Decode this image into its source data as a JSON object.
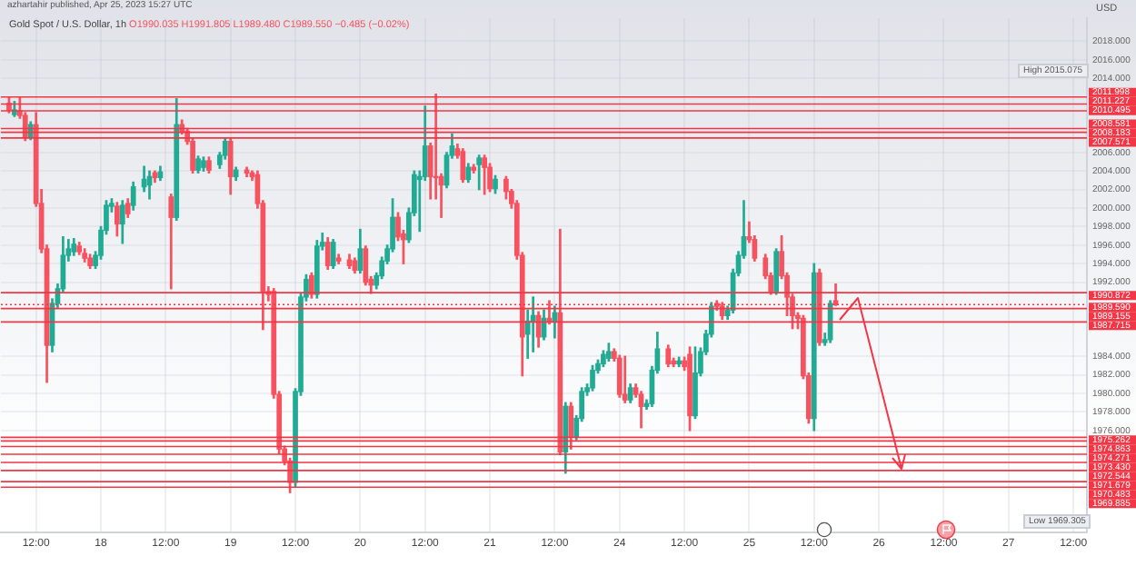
{
  "chart_data": {
    "type": "candlestick",
    "title": "Gold Spot / U.S. Dollar, 1h",
    "subtitle": "O1990.035 H1991.805 L1989.480 C1989.550 −0.485 (−0.02%)",
    "ylabel": "USD",
    "annotations": [
      "azhartahir published, Apr 25, 2023 15:27 UTC",
      "High 2015.075",
      "Low 1969.305"
    ],
    "categories": [
      null,
      null,
      null,
      null,
      null,
      null,
      "12:00",
      null,
      null,
      null,
      null,
      null,
      null,
      null,
      null,
      null,
      null,
      null,
      "18",
      null,
      null,
      null,
      null,
      null,
      null,
      null,
      null,
      null,
      null,
      null,
      "12:00",
      null,
      null,
      null,
      null,
      null,
      null,
      null,
      null,
      null,
      null,
      null,
      "19",
      null,
      null,
      null,
      null,
      null,
      null,
      null,
      null,
      null,
      null,
      null,
      "12:00",
      null,
      null,
      null,
      null,
      null,
      null,
      null,
      null,
      null,
      null,
      null,
      "20",
      null,
      null,
      null,
      null,
      null,
      null,
      null,
      null,
      null,
      null,
      null,
      "12:00",
      null,
      null,
      null,
      null,
      null,
      null,
      null,
      null,
      null,
      null,
      null,
      "21",
      null,
      null,
      null,
      null,
      null,
      null,
      null,
      null,
      null,
      null,
      null,
      "12:00",
      null,
      null,
      null,
      null,
      null,
      null,
      null,
      null,
      null,
      null,
      null,
      "24",
      null,
      null,
      null,
      null,
      null,
      null,
      null,
      null,
      null,
      null,
      null,
      "12:00",
      null,
      null,
      null,
      null,
      null,
      null,
      null,
      null,
      null,
      null,
      null,
      "25",
      null,
      null,
      null,
      null,
      null,
      null,
      null,
      null,
      null,
      null,
      null,
      "12:00",
      null,
      null,
      null,
      null,
      null,
      null,
      null,
      null,
      null,
      null,
      null,
      "26",
      null,
      null,
      null,
      null,
      null,
      null,
      null,
      null,
      null,
      null,
      null,
      "12:00",
      null,
      null,
      null,
      null,
      null,
      null,
      null,
      null,
      null,
      null,
      null,
      "27",
      null,
      null,
      null,
      null,
      null,
      null,
      null,
      null,
      null,
      null,
      null,
      "12:00",
      null,
      null
    ],
    "ohlc": [
      null,
      [
        2011.3,
        2012.0,
        2010.3,
        2010.6
      ],
      [
        2010.1,
        2011.5,
        2009.9,
        2010.6
      ],
      [
        2010.5,
        2012.0,
        2009.7,
        2010.0
      ],
      [
        2010.0,
        2010.3,
        2007.3,
        2007.7
      ],
      [
        2007.7,
        2009.3,
        2007.4,
        2009.0
      ],
      [
        2009.0,
        2010.3,
        2000.2,
        2000.5
      ],
      [
        2000.5,
        2002.0,
        1995.2,
        1995.6
      ],
      [
        1995.6,
        1996.0,
        1981.2,
        1985.2
      ],
      [
        1985.2,
        1990.2,
        1984.5,
        1989.7
      ],
      [
        1989.7,
        1991.8,
        1989.2,
        1991.3
      ],
      [
        1991.3,
        1996.9,
        1991.0,
        1994.9
      ],
      [
        1994.9,
        1996.6,
        1994.3,
        1995.6
      ],
      [
        1995.3,
        1996.7,
        1994.9,
        1996.1
      ],
      [
        1995.9,
        1996.3,
        1995.0,
        1995.3
      ],
      [
        1995.1,
        1995.6,
        1994.2,
        1994.6
      ],
      [
        1994.6,
        1995.0,
        1993.5,
        1993.8
      ],
      [
        1993.8,
        1995.3,
        1993.5,
        1994.9
      ],
      [
        1994.9,
        1998.0,
        1994.5,
        1997.6
      ],
      [
        1997.6,
        2000.8,
        1997.2,
        2000.3
      ],
      [
        2000.2,
        2001.0,
        1999.6,
        2000.5
      ],
      [
        2000.2,
        2000.6,
        1997.0,
        1998.3
      ],
      [
        1998.3,
        2000.8,
        1996.2,
        2000.3
      ],
      [
        2000.5,
        2001.0,
        1999.0,
        1999.4
      ],
      [
        2000.3,
        2002.8,
        1999.8,
        2002.3
      ],
      null,
      [
        2002.3,
        2004.5,
        2001.8,
        2003.1
      ],
      [
        2002.5,
        2004.0,
        2001.0,
        2003.4
      ],
      [
        2003.8,
        2004.0,
        2002.8,
        2003.3
      ],
      [
        2003.3,
        2004.5,
        2003.0,
        2003.9
      ],
      null,
      [
        2001.2,
        2001.5,
        1991.3,
        1999.0
      ],
      [
        1999.0,
        2011.8,
        1998.7,
        2009.0
      ],
      [
        2009.0,
        2009.5,
        2008.0,
        2008.3
      ],
      [
        2008.3,
        2008.6,
        2006.9,
        2007.2
      ],
      [
        2007.2,
        2007.5,
        2003.8,
        2004.1
      ],
      [
        2004.1,
        2005.6,
        2003.8,
        2005.3
      ],
      [
        2004.4,
        2005.5,
        2004.0,
        2005.1
      ],
      [
        2005.1,
        2005.5,
        2003.8,
        2004.1
      ],
      null,
      [
        2004.7,
        2006.0,
        2004.3,
        2005.7
      ],
      [
        2005.7,
        2007.5,
        2005.3,
        2007.2
      ],
      [
        2007.2,
        2007.5,
        2001.5,
        2003.4
      ],
      [
        2003.4,
        2004.4,
        2003.0,
        2004.1
      ],
      null,
      [
        2004.1,
        2004.4,
        2003.4,
        2003.8
      ],
      [
        2003.8,
        2004.0,
        2003.0,
        2003.4
      ],
      [
        2003.6,
        2004.0,
        2000.0,
        2000.5
      ],
      [
        2000.5,
        2000.8,
        1986.9,
        1991.0
      ],
      [
        1991.0,
        1991.5,
        1990.0,
        1990.7
      ],
      [
        1991.0,
        1991.3,
        1979.5,
        1979.9
      ],
      [
        1979.9,
        1980.2,
        1973.5,
        1974.0
      ],
      [
        1974.0,
        1974.3,
        1972.3,
        1972.7
      ],
      [
        1972.7,
        1973.0,
        1969.3,
        1970.4
      ],
      [
        1970.4,
        1980.5,
        1969.9,
        1980.2
      ],
      [
        1980.2,
        1990.8,
        1979.8,
        1990.4
      ],
      [
        1990.4,
        1992.8,
        1990.0,
        1992.3
      ],
      [
        1992.7,
        1993.0,
        1990.3,
        1990.7
      ],
      [
        1990.7,
        1996.5,
        1990.3,
        1995.9
      ],
      [
        1995.9,
        1997.3,
        1995.5,
        1996.3
      ],
      [
        1996.3,
        1996.8,
        1993.4,
        1993.8
      ],
      [
        1993.8,
        1996.6,
        1993.5,
        1996.3
      ],
      [
        1994.6,
        1995.0,
        1994.0,
        1994.3
      ],
      null,
      [
        1994.4,
        1995.0,
        1993.5,
        1993.8
      ],
      [
        1994.3,
        1994.6,
        1993.0,
        1993.3
      ],
      [
        1993.3,
        1997.7,
        1993.0,
        1995.6
      ],
      [
        1995.6,
        1995.9,
        1991.7,
        1992.0
      ],
      [
        1992.3,
        1992.6,
        1990.8,
        1991.7
      ],
      [
        1991.7,
        1993.0,
        1991.3,
        1992.7
      ],
      [
        1992.7,
        1994.7,
        1992.4,
        1994.3
      ],
      [
        1994.3,
        1996.0,
        1994.0,
        1995.6
      ],
      [
        1995.6,
        2001.0,
        1995.3,
        1999.0
      ],
      [
        1999.0,
        1999.5,
        1996.5,
        1996.9
      ],
      [
        1997.2,
        1997.6,
        1994.0,
        1996.6
      ],
      [
        1996.6,
        2000.0,
        1996.3,
        1999.5
      ],
      [
        1999.5,
        2004.0,
        1999.2,
        2003.6
      ],
      [
        2003.1,
        2004.0,
        1997.5,
        2003.4
      ],
      [
        2003.4,
        2011.0,
        2003.0,
        2006.7
      ],
      [
        2006.7,
        2007.0,
        2001.0,
        2003.4
      ],
      [
        2003.4,
        2012.3,
        2001.0,
        2003.3
      ],
      [
        2003.4,
        2003.7,
        1999.0,
        2002.5
      ],
      [
        2002.5,
        2006.0,
        2002.2,
        2005.7
      ],
      [
        2005.7,
        2008.0,
        2005.4,
        2006.7
      ],
      [
        2006.4,
        2006.9,
        2005.4,
        2005.7
      ],
      [
        2006.1,
        2006.4,
        2002.8,
        2003.1
      ],
      [
        2003.1,
        2004.8,
        2002.8,
        2004.4
      ],
      [
        2004.4,
        2004.7,
        2003.8,
        2004.1
      ],
      [
        2004.7,
        2005.7,
        2002.0,
        2005.4
      ],
      [
        2005.4,
        2005.7,
        2001.5,
        2004.4
      ],
      [
        2004.4,
        2004.8,
        2001.8,
        2002.1
      ],
      [
        2002.1,
        2003.5,
        2001.6,
        2003.1
      ],
      null,
      [
        2003.1,
        2003.4,
        2001.0,
        2001.8
      ],
      [
        2001.8,
        2002.0,
        2000.0,
        2000.5
      ],
      [
        2000.5,
        2000.8,
        1994.5,
        1994.9
      ],
      [
        1994.9,
        1995.2,
        1981.9,
        1986.1
      ],
      [
        1986.4,
        1989.0,
        1983.8,
        1987.8
      ],
      [
        1987.8,
        1990.4,
        1984.5,
        1988.4
      ],
      [
        1988.4,
        1988.8,
        1985.0,
        1986.1
      ],
      [
        1986.1,
        1989.0,
        1985.8,
        1988.1
      ],
      [
        1988.1,
        1990.0,
        1987.5,
        1987.8
      ],
      [
        1987.8,
        1989.4,
        1986.0,
        1988.7
      ],
      [
        1988.7,
        1997.7,
        1973.4,
        1973.7
      ],
      [
        1973.7,
        1979.0,
        1971.4,
        1978.6
      ],
      [
        1978.6,
        1979.0,
        1974.0,
        1975.3
      ],
      [
        1975.3,
        1977.6,
        1975.0,
        1977.3
      ],
      [
        1977.3,
        1980.6,
        1977.0,
        1980.2
      ],
      [
        1980.2,
        1981.0,
        1979.8,
        1980.6
      ],
      [
        1980.6,
        1983.0,
        1980.3,
        1982.5
      ],
      [
        1982.5,
        1983.6,
        1982.2,
        1983.2
      ],
      [
        1983.2,
        1984.6,
        1982.9,
        1984.2
      ],
      [
        1983.8,
        1985.4,
        1983.5,
        1984.5
      ],
      [
        1984.5,
        1984.8,
        1983.5,
        1983.8
      ],
      [
        1983.8,
        1984.1,
        1979.6,
        1979.9
      ],
      [
        1979.9,
        1984.0,
        1979.0,
        1979.3
      ],
      [
        1979.3,
        1981.0,
        1979.0,
        1980.6
      ],
      [
        1980.6,
        1981.0,
        1979.6,
        1979.9
      ],
      [
        1979.9,
        1980.2,
        1976.3,
        1978.6
      ],
      [
        1978.6,
        1979.3,
        1978.3,
        1978.9
      ],
      [
        1978.9,
        1982.9,
        1978.6,
        1982.5
      ],
      [
        1982.5,
        1986.6,
        1982.2,
        1984.8
      ],
      null,
      [
        1984.8,
        1985.2,
        1982.9,
        1983.2
      ],
      [
        1983.5,
        1983.8,
        1982.9,
        1983.2
      ],
      [
        1983.2,
        1983.9,
        1982.9,
        1983.5
      ],
      [
        1983.5,
        1983.9,
        1982.5,
        1982.9
      ],
      [
        1984.2,
        1985.0,
        1976.0,
        1977.6
      ],
      [
        1977.6,
        1985.0,
        1977.3,
        1982.2
      ],
      [
        1982.2,
        1984.9,
        1981.9,
        1984.5
      ],
      [
        1984.5,
        1986.8,
        1984.2,
        1986.4
      ],
      [
        1986.4,
        1989.8,
        1986.1,
        1989.4
      ],
      [
        1989.7,
        1990.0,
        1989.0,
        1989.4
      ],
      [
        1989.4,
        1989.8,
        1988.0,
        1988.4
      ],
      [
        1988.4,
        1989.4,
        1988.0,
        1989.0
      ],
      [
        1989.0,
        1993.4,
        1988.7,
        1993.0
      ],
      [
        1993.0,
        1995.3,
        1992.7,
        1994.9
      ],
      [
        1994.9,
        2000.8,
        1994.6,
        1996.9
      ],
      [
        1996.9,
        1998.5,
        1996.3,
        1996.6
      ],
      [
        1996.6,
        1997.0,
        1994.3,
        1994.6
      ],
      null,
      [
        1994.6,
        1995.0,
        1992.4,
        1992.7
      ],
      [
        1992.7,
        1993.0,
        1990.7,
        1991.0
      ],
      [
        1991.0,
        1995.6,
        1990.7,
        1995.3
      ],
      [
        1995.3,
        1997.0,
        1992.4,
        1992.7
      ],
      [
        1992.7,
        1993.0,
        1988.4,
        1990.4
      ],
      [
        1990.4,
        1990.7,
        1987.0,
        1988.4
      ],
      [
        1988.4,
        1988.7,
        1987.0,
        1988.1
      ],
      [
        1988.1,
        1988.4,
        1981.6,
        1981.9
      ],
      [
        1981.9,
        1982.2,
        1976.8,
        1977.3
      ],
      [
        1977.3,
        1994.0,
        1976.0,
        1993.0
      ],
      [
        1993.0,
        1993.4,
        1985.2,
        1985.5
      ],
      [
        1985.5,
        1986.5,
        1985.2,
        1985.8
      ],
      [
        1985.8,
        1990.0,
        1985.5,
        1989.7
      ],
      [
        1990.0,
        1991.8,
        1989.5,
        1989.6
      ],
      null,
      null,
      null,
      null,
      null,
      null,
      null,
      null,
      null,
      null,
      null,
      null,
      null,
      null,
      null,
      null,
      null,
      null,
      null,
      null,
      null,
      null,
      null,
      null,
      null,
      null,
      null,
      null,
      null,
      null,
      null,
      null,
      null,
      null,
      null,
      null,
      null,
      null,
      null,
      null,
      null,
      null,
      null,
      null,
      null,
      null
    ],
    "ylim": [
      1965,
      2020.5
    ],
    "yticks": [
      {
        "value": 1976,
        "label": "1976.000"
      },
      {
        "value": 1978,
        "label": "1978.000"
      },
      {
        "value": 1980,
        "label": "1980.000"
      },
      {
        "value": 1982,
        "label": "1982.000"
      },
      {
        "value": 1984,
        "label": "1984.000"
      },
      {
        "value": 1992,
        "label": "1992.000"
      },
      {
        "value": 1994,
        "label": "1994.000"
      },
      {
        "value": 1996,
        "label": "1996.000"
      },
      {
        "value": 1998,
        "label": "1998.000"
      },
      {
        "value": 2000,
        "label": "2000.000"
      },
      {
        "value": 2002,
        "label": "2002.000"
      },
      {
        "value": 2004,
        "label": "2004.000"
      },
      {
        "value": 2006,
        "label": "2006.000"
      },
      {
        "value": 2014,
        "label": "2014.000"
      },
      {
        "value": 2016,
        "label": "2016.000"
      },
      {
        "value": 2018,
        "label": "2018.000"
      }
    ],
    "ref_lines": [
      {
        "axis": "y",
        "value": 2011.998,
        "label": "2011.998",
        "color": "#f23645"
      },
      {
        "axis": "y",
        "value": 2011.227,
        "label": "2011.227",
        "color": "#f23645"
      },
      {
        "axis": "y",
        "value": 2010.495,
        "label": "2010.495",
        "color": "#f23645"
      },
      {
        "axis": "y",
        "value": 2008.581,
        "label": "2008.581",
        "color": "#f23645"
      },
      {
        "axis": "y",
        "value": 2008.183,
        "label": "2008.183",
        "color": "#f23645"
      },
      {
        "axis": "y",
        "value": 2007.571,
        "label": "2007.571",
        "color": "#f23645"
      },
      {
        "axis": "y",
        "value": 1990.872,
        "label": "1990.872",
        "color": "#f23645"
      },
      {
        "axis": "y",
        "value": 1989.59,
        "label": "1989.590",
        "color": "#f23645",
        "line_style": "dotted"
      },
      {
        "axis": "y",
        "value": 1989.155,
        "label": "1989.155",
        "color": "#f23645"
      },
      {
        "axis": "y",
        "value": 1987.715,
        "label": "1987.715",
        "color": "#f23645"
      },
      {
        "axis": "y",
        "value": 1975.262,
        "label": "1975.262",
        "color": "#f23645"
      },
      {
        "axis": "y",
        "value": 1974.863,
        "label": "1974.863",
        "color": "#f23645"
      },
      {
        "axis": "y",
        "value": 1974.271,
        "label": "1974.271",
        "color": "#f23645"
      },
      {
        "axis": "y",
        "value": 1973.43,
        "label": "1973.430",
        "color": "#f23645"
      },
      {
        "axis": "y",
        "value": 1972.544,
        "label": "1972.544",
        "color": "#f23645"
      },
      {
        "axis": "y",
        "value": 1971.679,
        "label": "1971.679",
        "color": "#f23645"
      },
      {
        "axis": "y",
        "value": 1970.483,
        "label": "1970.483",
        "color": "#f23645"
      },
      {
        "axis": "y",
        "value": 1969.885,
        "label": "1969.885",
        "color": "#f23645"
      }
    ],
    "grid": true
  }
}
